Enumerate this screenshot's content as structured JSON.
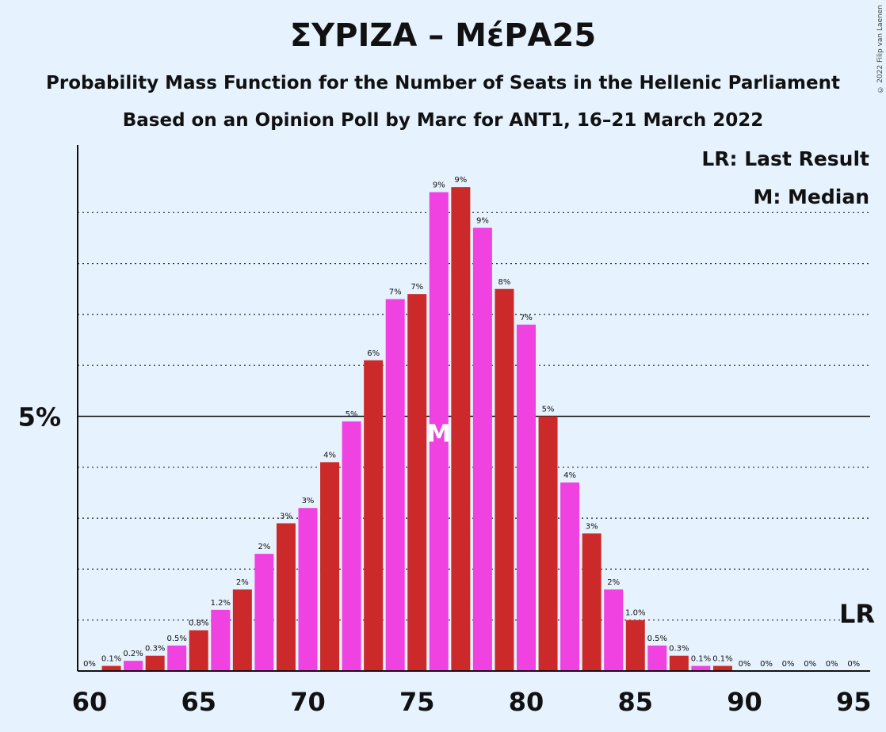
{
  "copyright": "© 2022 Filip van Laenen",
  "chart_data": {
    "type": "bar",
    "title": "ΣΥΡΙΖΑ – ΜέΡΑ25",
    "subtitle": "Probability Mass Function for the Number of Seats in the Hellenic Parliament",
    "subtitle2": "Based on an Opinion Poll by Marc for ANT1, 16–21 March 2022",
    "x": [
      60,
      61,
      62,
      63,
      64,
      65,
      66,
      67,
      68,
      69,
      70,
      71,
      72,
      73,
      74,
      75,
      76,
      77,
      78,
      79,
      80,
      81,
      82,
      83,
      84,
      85,
      86,
      87,
      88,
      89,
      90,
      91,
      92,
      93,
      94,
      95
    ],
    "values": [
      0.0,
      0.1,
      0.2,
      0.3,
      0.5,
      0.8,
      1.2,
      1.6,
      2.3,
      2.9,
      3.2,
      4.1,
      4.9,
      6.1,
      7.3,
      7.4,
      9.4,
      9.5,
      8.7,
      7.5,
      6.8,
      5.0,
      3.7,
      2.7,
      1.6,
      1.0,
      0.5,
      0.3,
      0.1,
      0.1,
      0.0,
      0.0,
      0.0,
      0.0,
      0.0,
      0.0
    ],
    "labels": [
      "0%",
      "0.1%",
      "0.2%",
      "0.3%",
      "0.5%",
      "0.8%",
      "1.2%",
      "2%",
      "2%",
      "3%",
      "3%",
      "4%",
      "5%",
      "6%",
      "7%",
      "7%",
      "9%",
      "9%",
      "9%",
      "8%",
      "7%",
      "5%",
      "4%",
      "3%",
      "2%",
      "1.0%",
      "0.5%",
      "0.3%",
      "0.1%",
      "0.1%",
      "0%",
      "0%",
      "0%",
      "0%",
      "0%",
      "0%"
    ],
    "xticks": [
      60,
      65,
      70,
      75,
      80,
      85,
      90,
      95
    ],
    "xtick_labels": [
      "60",
      "65",
      "70",
      "75",
      "80",
      "85",
      "90",
      "95"
    ],
    "ytick": {
      "value": 5,
      "label": "5%"
    },
    "ylim": [
      0,
      10
    ],
    "gridlines": [
      1,
      2,
      3,
      4,
      6,
      7,
      8,
      9
    ],
    "median": {
      "x": 76,
      "label": "M"
    },
    "last_result": {
      "x": 95,
      "label": "LR"
    },
    "legend": [
      "LR: Last Result",
      "M: Median"
    ],
    "colors": {
      "odd": "#cc2a2a",
      "even": "#ef42e0"
    }
  }
}
